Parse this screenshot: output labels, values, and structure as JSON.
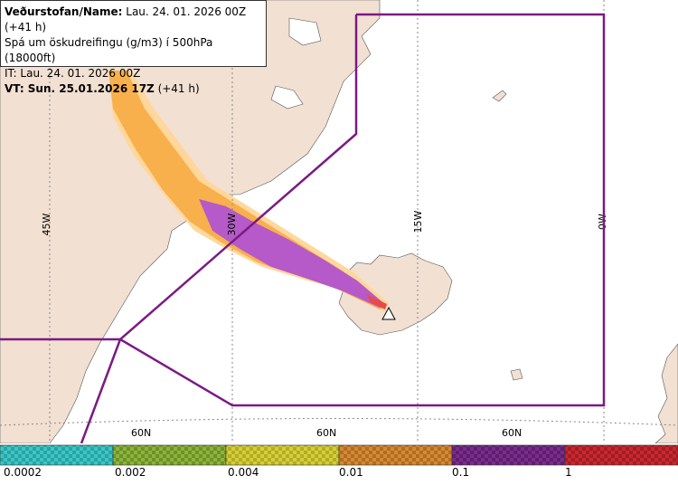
{
  "info": {
    "name_label": "Veðurstofan/Name:",
    "name_value": " Lau. 24. 01. 2026 00Z (+41 h)",
    "description": "Spá um öskudreifingu (g/m3) í 500hPa (18000ft)",
    "it_line": "IT: Lau. 24. 01. 2026 00Z",
    "vt_label": "VT: Sun. 25.01.2026 17Z",
    "vt_suffix": " (+41 h)"
  },
  "grid_labels": {
    "lon_45w": "45W",
    "lon_30w": "30W",
    "lon_15w": "15W",
    "lon_0w": "0W",
    "lat_60n_a": "60N",
    "lat_60n_b": "60N",
    "lat_60n_c": "60N"
  },
  "legend": {
    "thresholds": [
      "0.0002",
      "0.002",
      "0.004",
      "0.01",
      "0.1",
      "1"
    ],
    "colors": [
      "#3cc6c6",
      "#8db43a",
      "#d4cf3a",
      "#d48a34",
      "#7b2d8b",
      "#c8282f"
    ]
  },
  "colors": {
    "land": "#f2e0d2",
    "sea": "#ffffff",
    "boundary": "#7b1a84",
    "ash_light": "#ffd699",
    "ash_orange": "#f8b04c",
    "ash_purple": "#b55ac8"
  }
}
